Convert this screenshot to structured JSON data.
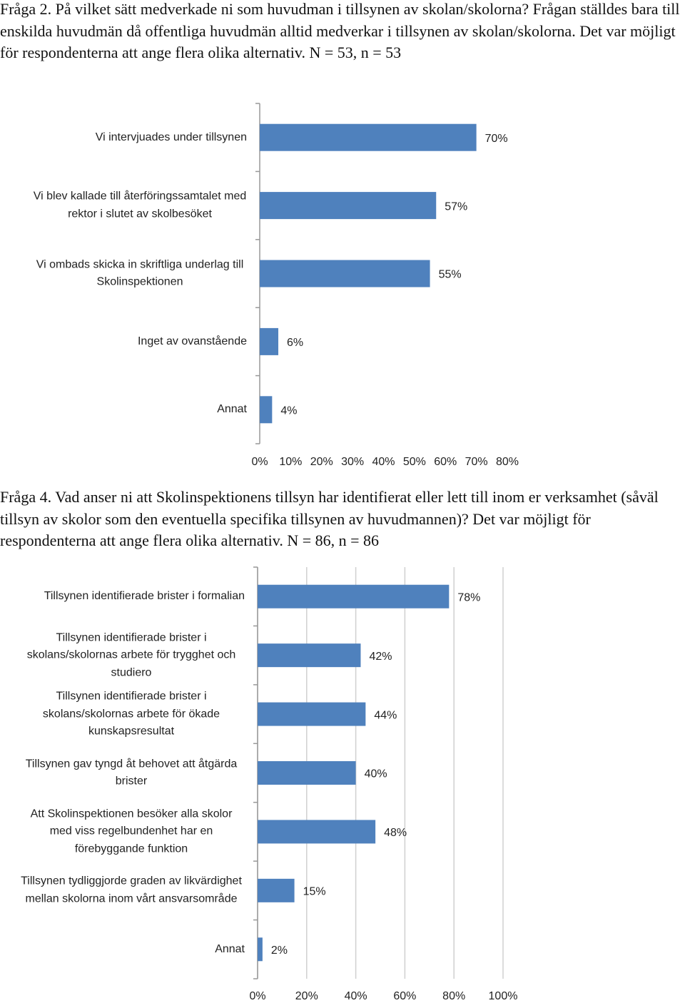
{
  "chart_data": [
    {
      "type": "bar",
      "orientation": "horizontal",
      "title": "Fråga 2. På vilket sätt medverkade ni som huvudman i tillsynen av skolan/skolorna? Frågan ställdes bara till enskilda huvudmän då offentliga huvudmän alltid medverkar i tillsynen av skolan/skolorna. Det var möjligt för respondenterna att ange flera olika alternativ. N = 53, n = 53",
      "categories": [
        "Vi intervjuades under tillsynen",
        "Vi blev kallade till återföringssamtalet med rektor i slutet av skolbesöket",
        "Vi ombads skicka in skriftliga underlag till Skolinspektionen",
        "Inget av ovanstående",
        "Annat"
      ],
      "values": [
        70,
        57,
        55,
        6,
        4
      ],
      "value_labels": [
        "70%",
        "57%",
        "55%",
        "6%",
        "4%"
      ],
      "color": "#4f81bd",
      "xlim": [
        0,
        80
      ],
      "xticks": [
        {
          "value": 0,
          "label": "0%"
        },
        {
          "value": 10,
          "label": "10%"
        },
        {
          "value": 20,
          "label": "20%"
        },
        {
          "value": 30,
          "label": "30%"
        },
        {
          "value": 40,
          "label": "40%"
        },
        {
          "value": 50,
          "label": "50%"
        },
        {
          "value": 60,
          "label": "60%"
        },
        {
          "value": 70,
          "label": "70%"
        },
        {
          "value": 80,
          "label": "80%"
        }
      ],
      "grid": false
    },
    {
      "type": "bar",
      "orientation": "horizontal",
      "title": "Fråga 4. Vad anser ni att Skolinspektionens tillsyn har identifierat eller lett till inom er verksamhet (såväl tillsyn av skolor som den eventuella specifika tillsynen av huvudmannen)? Det var möjligt för respondenterna att ange flera olika alternativ. N = 86, n = 86",
      "categories": [
        "Tillsynen identifierade brister i formalian",
        "Tillsynen identifierade brister i skolans/skolornas arbete för trygghet och studiero",
        "Tillsynen identifierade brister i skolans/skolornas arbete för ökade kunskapsresultat",
        "Tillsynen gav tyngd åt behovet att åtgärda brister",
        "Att Skolinspektionen besöker alla skolor med viss regelbundenhet har en förebyggande funktion",
        "Tillsynen tydliggjorde graden av likvärdighet mellan skolorna inom vårt ansvarsområde",
        "Annat"
      ],
      "values": [
        78,
        42,
        44,
        40,
        48,
        15,
        2
      ],
      "value_labels": [
        "78%",
        "42%",
        "44%",
        "40%",
        "48%",
        "15%",
        "2%"
      ],
      "color": "#4f81bd",
      "xlim": [
        0,
        100
      ],
      "xticks": [
        {
          "value": 0,
          "label": "0%"
        },
        {
          "value": 20,
          "label": "20%"
        },
        {
          "value": 40,
          "label": "40%"
        },
        {
          "value": 60,
          "label": "60%"
        },
        {
          "value": 80,
          "label": "80%"
        },
        {
          "value": 100,
          "label": "100%"
        }
      ],
      "grid": true
    }
  ]
}
